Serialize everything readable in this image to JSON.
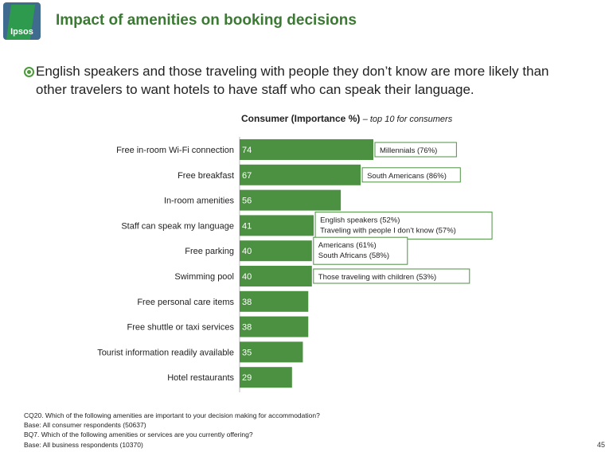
{
  "logo": {
    "text": "Ipsos"
  },
  "title": "Impact of amenities on booking decisions",
  "bullet": "English speakers and those traveling with people they don’t know are more likely than other travelers to want hotels to have staff who can speak their language.",
  "chart_title": {
    "bold": "Consumer (Importance %)",
    "italic": "– top 10 for consumers"
  },
  "chart_data": {
    "type": "bar",
    "orientation": "horizontal",
    "title": "Consumer (Importance %) – top 10 for consumers",
    "categories": [
      "Free in-room Wi-Fi connection",
      "Free breakfast",
      "In-room amenities",
      "Staff can speak my language",
      "Free parking",
      "Swimming pool",
      "Free personal care items",
      "Free shuttle or taxi services",
      "Tourist information readily available",
      "Hotel restaurants"
    ],
    "values": [
      74,
      67,
      56,
      41,
      40,
      40,
      38,
      38,
      35,
      29
    ],
    "bar_color": "#4c9141",
    "annotations": [
      {
        "category_index": 0,
        "lines": [
          "Millennials (76%)"
        ]
      },
      {
        "category_index": 1,
        "lines": [
          "South Americans (86%)"
        ]
      },
      {
        "category_index": 3,
        "lines": [
          "English speakers (52%)",
          "Traveling with people I don’t know (57%)"
        ]
      },
      {
        "category_index": 4,
        "lines": [
          "Americans (61%)",
          "South Africans (58%)"
        ]
      },
      {
        "category_index": 5,
        "lines": [
          "Those traveling with children (53%)"
        ]
      }
    ]
  },
  "footnotes": [
    "CQ20. Which of the following amenities are important to your decision making for accommodation?",
    "Base: All consumer respondents (50637)",
    "BQ7. Which of the following amenities or services are you currently offering?",
    "Base: All business respondents (10370)"
  ],
  "page_number": "45"
}
